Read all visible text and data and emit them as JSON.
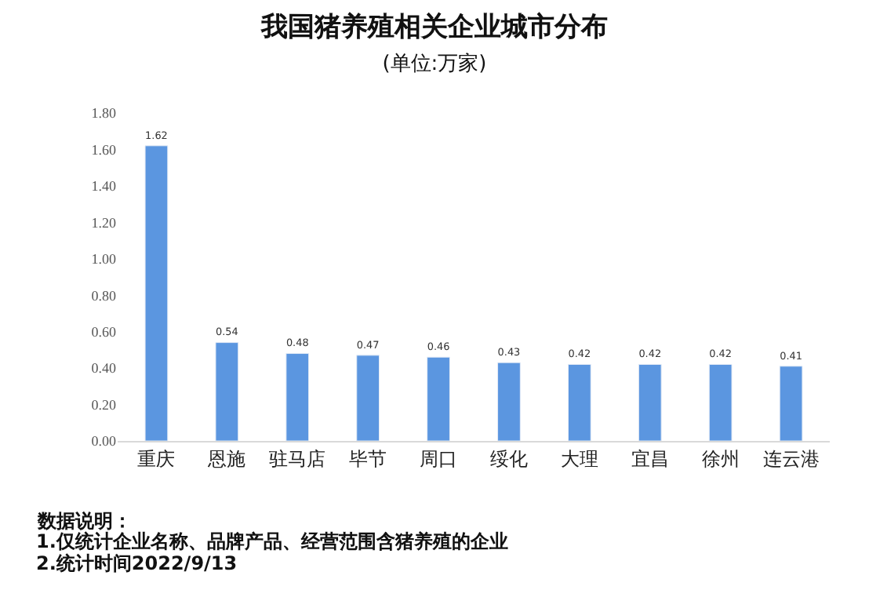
{
  "chart_data": {
    "type": "bar",
    "title": "我国猪养殖相关企业城市分布",
    "subtitle": "(单位:万家)",
    "categories": [
      "重庆",
      "恩施",
      "驻马店",
      "毕节",
      "周口",
      "绥化",
      "大理",
      "宜昌",
      "徐州",
      "连云港"
    ],
    "values": [
      1.62,
      0.54,
      0.48,
      0.47,
      0.46,
      0.43,
      0.42,
      0.42,
      0.42,
      0.41
    ],
    "color": "#5b96e0",
    "data_labels": true,
    "ylim": [
      0,
      1.8
    ],
    "yticks": [
      {
        "value": 0,
        "label": "0.00"
      },
      {
        "value": 0.2,
        "label": "0.20"
      },
      {
        "value": 0.4,
        "label": "0.40"
      },
      {
        "value": 0.6,
        "label": "0.60"
      },
      {
        "value": 0.8,
        "label": "0.80"
      },
      {
        "value": 1.0,
        "label": "1.00"
      },
      {
        "value": 1.2,
        "label": "1.20"
      },
      {
        "value": 1.4,
        "label": "1.40"
      },
      {
        "value": 1.6,
        "label": "1.60"
      },
      {
        "value": 1.8,
        "label": "1.80"
      }
    ],
    "annotations": [
      "数据说明：",
      "1.仅统计企业名称、品牌产品、经营范围含猪养殖的企业",
      "2.统计时间2022/9/13"
    ]
  }
}
